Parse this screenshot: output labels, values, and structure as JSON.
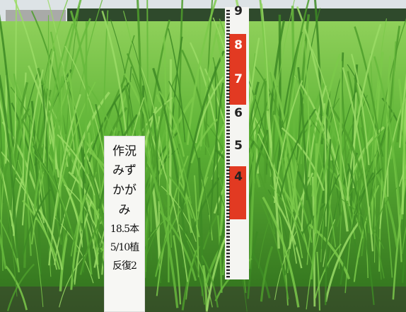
{
  "sign": {
    "lines": [
      "作況",
      "みずかがみ",
      "18.5本",
      "5/10植",
      "反復2"
    ]
  },
  "ruler": {
    "labels": [
      "9",
      "8",
      "7",
      "6",
      "5",
      "4"
    ]
  }
}
